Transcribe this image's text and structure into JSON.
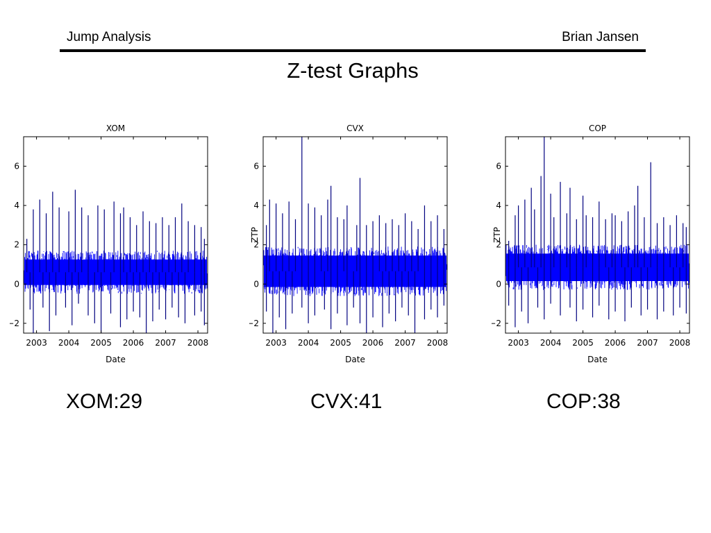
{
  "header": {
    "left_text": "Jump Analysis",
    "right_text": "Brian Jansen"
  },
  "slide": {
    "title": "Z-test Graphs"
  },
  "counts": [
    {
      "label": "XOM:29"
    },
    {
      "label": "CVX:41"
    },
    {
      "label": "COP:38"
    }
  ],
  "colors": {
    "series": "#0000ff",
    "spike": "#00007f",
    "axes": "#000000"
  },
  "chart_data": [
    {
      "type": "line",
      "title": "XOM",
      "xlabel": "Date",
      "ylabel": "",
      "xlim": [
        2002.6,
        2008.3
      ],
      "ylim": [
        -2.5,
        7.5
      ],
      "xticks": [
        2003,
        2004,
        2005,
        2006,
        2007,
        2008
      ],
      "yticks": [
        -2,
        0,
        2,
        4,
        6
      ],
      "series": [
        {
          "band": {
            "low": -0.4,
            "high": 1.6
          },
          "spikes_up": [
            [
              2002.7,
              2.3
            ],
            [
              2002.9,
              3.8
            ],
            [
              2003.1,
              4.3
            ],
            [
              2003.3,
              3.6
            ],
            [
              2003.5,
              4.7
            ],
            [
              2003.7,
              3.9
            ],
            [
              2004.0,
              3.7
            ],
            [
              2004.2,
              4.8
            ],
            [
              2004.4,
              3.9
            ],
            [
              2004.6,
              3.5
            ],
            [
              2004.9,
              4.0
            ],
            [
              2005.1,
              3.8
            ],
            [
              2005.4,
              4.2
            ],
            [
              2005.6,
              3.6
            ],
            [
              2005.7,
              3.9
            ],
            [
              2005.9,
              3.4
            ],
            [
              2006.1,
              3.0
            ],
            [
              2006.3,
              3.7
            ],
            [
              2006.5,
              3.2
            ],
            [
              2006.7,
              3.1
            ],
            [
              2006.9,
              3.4
            ],
            [
              2007.1,
              3.0
            ],
            [
              2007.3,
              3.4
            ],
            [
              2007.5,
              4.1
            ],
            [
              2007.7,
              3.2
            ],
            [
              2007.9,
              3.0
            ],
            [
              2008.1,
              2.9
            ],
            [
              2008.2,
              2.3
            ]
          ],
          "spikes_down": [
            [
              2002.8,
              -1.3
            ],
            [
              2002.9,
              -2.5
            ],
            [
              2003.2,
              -1.2
            ],
            [
              2003.4,
              -2.4
            ],
            [
              2003.6,
              -1.6
            ],
            [
              2003.9,
              -1.2
            ],
            [
              2004.1,
              -2.1
            ],
            [
              2004.3,
              -1.0
            ],
            [
              2004.6,
              -1.6
            ],
            [
              2004.8,
              -2.0
            ],
            [
              2005.0,
              -2.5
            ],
            [
              2005.3,
              -1.5
            ],
            [
              2005.6,
              -2.2
            ],
            [
              2005.8,
              -1.8
            ],
            [
              2006.0,
              -1.4
            ],
            [
              2006.2,
              -1.7
            ],
            [
              2006.4,
              -2.5
            ],
            [
              2006.6,
              -1.9
            ],
            [
              2006.8,
              -1.3
            ],
            [
              2007.0,
              -1.8
            ],
            [
              2007.2,
              -1.2
            ],
            [
              2007.4,
              -1.7
            ],
            [
              2007.6,
              -2.0
            ],
            [
              2007.9,
              -1.6
            ],
            [
              2008.1,
              -1.4
            ],
            [
              2008.2,
              -2.1
            ]
          ]
        }
      ]
    },
    {
      "type": "line",
      "title": "CVX",
      "xlabel": "Date",
      "ylabel": "ZTP",
      "xlim": [
        2002.6,
        2008.3
      ],
      "ylim": [
        -2.5,
        7.5
      ],
      "xticks": [
        2003,
        2004,
        2005,
        2006,
        2007,
        2008
      ],
      "yticks": [
        -2,
        0,
        2,
        4,
        6
      ],
      "series": [
        {
          "band": {
            "low": -0.5,
            "high": 1.8
          },
          "spikes_up": [
            [
              2002.7,
              3.0
            ],
            [
              2002.8,
              4.3
            ],
            [
              2003.0,
              4.1
            ],
            [
              2003.2,
              3.6
            ],
            [
              2003.4,
              4.2
            ],
            [
              2003.6,
              3.3
            ],
            [
              2003.8,
              7.5
            ],
            [
              2004.0,
              4.1
            ],
            [
              2004.2,
              3.9
            ],
            [
              2004.4,
              3.5
            ],
            [
              2004.6,
              4.3
            ],
            [
              2004.7,
              5.0
            ],
            [
              2004.9,
              3.4
            ],
            [
              2005.1,
              3.3
            ],
            [
              2005.2,
              4.0
            ],
            [
              2005.5,
              3.0
            ],
            [
              2005.6,
              5.4
            ],
            [
              2005.8,
              3.0
            ],
            [
              2006.0,
              3.2
            ],
            [
              2006.2,
              3.5
            ],
            [
              2006.4,
              3.1
            ],
            [
              2006.6,
              3.3
            ],
            [
              2006.8,
              3.0
            ],
            [
              2007.0,
              3.6
            ],
            [
              2007.2,
              3.2
            ],
            [
              2007.4,
              2.8
            ],
            [
              2007.6,
              4.0
            ],
            [
              2007.8,
              3.2
            ],
            [
              2008.0,
              3.5
            ],
            [
              2008.2,
              2.8
            ]
          ],
          "spikes_down": [
            [
              2002.7,
              -1.4
            ],
            [
              2002.9,
              -2.5
            ],
            [
              2003.1,
              -1.7
            ],
            [
              2003.3,
              -2.3
            ],
            [
              2003.5,
              -1.5
            ],
            [
              2003.8,
              -1.2
            ],
            [
              2004.0,
              -2.0
            ],
            [
              2004.2,
              -1.6
            ],
            [
              2004.5,
              -1.3
            ],
            [
              2004.7,
              -2.3
            ],
            [
              2004.9,
              -1.5
            ],
            [
              2005.2,
              -2.1
            ],
            [
              2005.4,
              -1.2
            ],
            [
              2005.6,
              -2.0
            ],
            [
              2005.8,
              -2.5
            ],
            [
              2006.0,
              -1.7
            ],
            [
              2006.3,
              -2.2
            ],
            [
              2006.5,
              -1.5
            ],
            [
              2006.7,
              -1.9
            ],
            [
              2006.9,
              -1.2
            ],
            [
              2007.1,
              -1.6
            ],
            [
              2007.3,
              -2.5
            ],
            [
              2007.6,
              -1.8
            ],
            [
              2007.8,
              -1.3
            ],
            [
              2008.0,
              -1.7
            ],
            [
              2008.2,
              -1.1
            ]
          ]
        }
      ]
    },
    {
      "type": "line",
      "title": "COP",
      "xlabel": "Date",
      "ylabel": "ZTP",
      "xlim": [
        2002.6,
        2008.3
      ],
      "ylim": [
        -2.5,
        7.5
      ],
      "xticks": [
        2003,
        2004,
        2005,
        2006,
        2007,
        2008
      ],
      "yticks": [
        -2,
        0,
        2,
        4,
        6
      ],
      "series": [
        {
          "band": {
            "low": -0.2,
            "high": 1.9
          },
          "spikes_up": [
            [
              2002.7,
              2.2
            ],
            [
              2002.9,
              3.5
            ],
            [
              2003.0,
              4.0
            ],
            [
              2003.2,
              4.3
            ],
            [
              2003.4,
              4.9
            ],
            [
              2003.5,
              3.8
            ],
            [
              2003.7,
              5.5
            ],
            [
              2003.8,
              7.5
            ],
            [
              2004.0,
              4.6
            ],
            [
              2004.1,
              3.4
            ],
            [
              2004.3,
              5.2
            ],
            [
              2004.5,
              3.6
            ],
            [
              2004.6,
              4.9
            ],
            [
              2004.8,
              3.3
            ],
            [
              2005.0,
              4.5
            ],
            [
              2005.1,
              3.5
            ],
            [
              2005.3,
              3.4
            ],
            [
              2005.5,
              4.2
            ],
            [
              2005.7,
              3.3
            ],
            [
              2005.9,
              3.6
            ],
            [
              2006.0,
              3.5
            ],
            [
              2006.2,
              3.2
            ],
            [
              2006.4,
              3.7
            ],
            [
              2006.6,
              4.0
            ],
            [
              2006.7,
              5.0
            ],
            [
              2006.9,
              3.4
            ],
            [
              2007.1,
              6.2
            ],
            [
              2007.3,
              3.1
            ],
            [
              2007.5,
              3.4
            ],
            [
              2007.7,
              3.0
            ],
            [
              2007.9,
              3.5
            ],
            [
              2008.1,
              3.1
            ],
            [
              2008.2,
              2.9
            ]
          ],
          "spikes_down": [
            [
              2002.7,
              -1.1
            ],
            [
              2002.9,
              -2.2
            ],
            [
              2003.1,
              -1.4
            ],
            [
              2003.3,
              -2.0
            ],
            [
              2003.6,
              -1.2
            ],
            [
              2003.8,
              -1.8
            ],
            [
              2004.0,
              -1.0
            ],
            [
              2004.3,
              -1.6
            ],
            [
              2004.6,
              -1.2
            ],
            [
              2004.8,
              -1.9
            ],
            [
              2005.0,
              -1.3
            ],
            [
              2005.3,
              -1.7
            ],
            [
              2005.5,
              -1.1
            ],
            [
              2005.8,
              -1.8
            ],
            [
              2006.0,
              -1.4
            ],
            [
              2006.3,
              -1.9
            ],
            [
              2006.5,
              -1.2
            ],
            [
              2006.8,
              -1.6
            ],
            [
              2007.0,
              -1.3
            ],
            [
              2007.3,
              -1.8
            ],
            [
              2007.5,
              -1.4
            ],
            [
              2007.8,
              -1.6
            ],
            [
              2008.0,
              -1.2
            ],
            [
              2008.2,
              -1.5
            ]
          ]
        }
      ]
    }
  ]
}
